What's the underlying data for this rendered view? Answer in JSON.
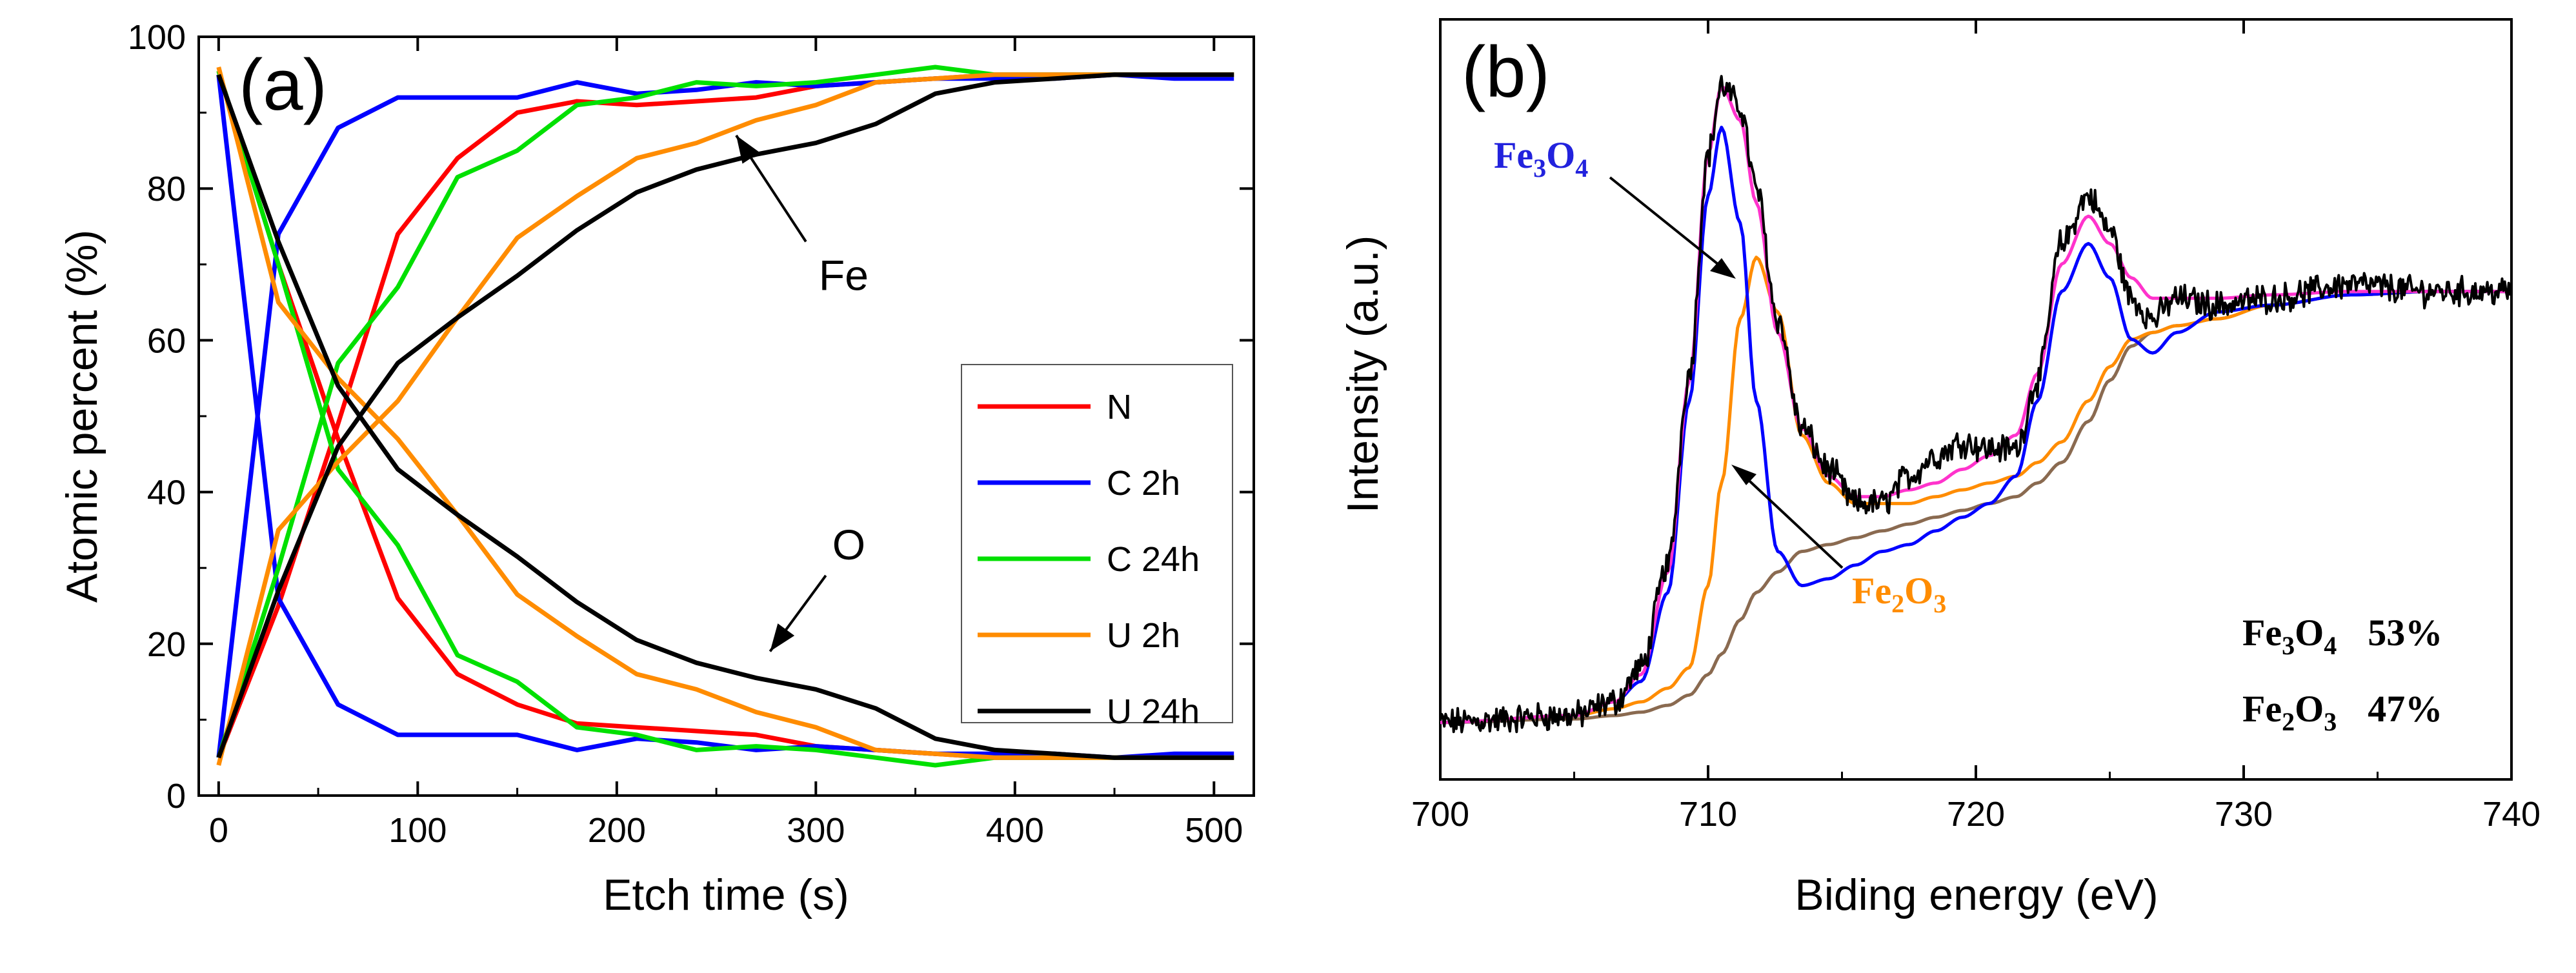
{
  "chart_data": [
    {
      "type": "line",
      "panel_label": "(a)",
      "xlabel": "Etch time (s)",
      "ylabel": "Atomic percent (%)",
      "xlim": [
        -10,
        520
      ],
      "ylim": [
        0,
        100
      ],
      "xticks": [
        0,
        100,
        200,
        300,
        400,
        500
      ],
      "yticks": [
        0,
        20,
        40,
        60,
        80,
        100
      ],
      "legend": {
        "placement": "right",
        "entries": [
          {
            "name": "N",
            "color": "#ff0000"
          },
          {
            "name": "C 2h",
            "color": "#0000ff"
          },
          {
            "name": "C 24h",
            "color": "#00e000"
          },
          {
            "name": "U 2h",
            "color": "#ff8c00"
          },
          {
            "name": "U 24h",
            "color": "#000000"
          }
        ]
      },
      "annotations": [
        {
          "text": "Fe",
          "arrow_from": [
            295,
            73
          ],
          "arrow_to": [
            260,
            87
          ]
        },
        {
          "text": "O",
          "arrow_from": [
            305,
            29
          ],
          "arrow_to": [
            277,
            19
          ]
        }
      ],
      "series": [
        {
          "group": "Fe",
          "color": "#ff0000",
          "x": [
            0,
            30,
            60,
            90,
            120,
            150,
            180,
            210,
            240,
            270,
            300,
            330,
            360,
            390,
            420,
            450,
            480,
            510
          ],
          "values": [
            5,
            25,
            49,
            74,
            84,
            90,
            91.5,
            91,
            91.5,
            92,
            93.5,
            94,
            94.5,
            95,
            95,
            95,
            95,
            95
          ]
        },
        {
          "group": "O",
          "color": "#ff0000",
          "x": [
            0,
            30,
            60,
            90,
            120,
            150,
            180,
            210,
            240,
            270,
            300,
            330,
            360,
            390,
            420,
            450,
            480,
            510
          ],
          "values": [
            95.5,
            70,
            47,
            26,
            16,
            12,
            9.5,
            9,
            8.5,
            8,
            6.5,
            6,
            5.5,
            5,
            5,
            5,
            5,
            5
          ]
        },
        {
          "group": "Fe",
          "color": "#0000ff",
          "x": [
            0,
            30,
            60,
            90,
            120,
            150,
            180,
            210,
            240,
            270,
            300,
            330,
            360,
            390,
            420,
            450,
            480,
            510
          ],
          "values": [
            5,
            74,
            88,
            92,
            92,
            92,
            94,
            92.5,
            93,
            94,
            93.5,
            94,
            94.5,
            94.5,
            94.5,
            95,
            94.5,
            94.5
          ]
        },
        {
          "group": "O",
          "color": "#0000ff",
          "x": [
            0,
            30,
            60,
            90,
            120,
            150,
            180,
            210,
            240,
            270,
            300,
            330,
            360,
            390,
            420,
            450,
            480,
            510
          ],
          "values": [
            95,
            26,
            12,
            8,
            8,
            8,
            6,
            7.5,
            7,
            6,
            6.5,
            6,
            5.5,
            5.5,
            5.5,
            5,
            5.5,
            5.5
          ]
        },
        {
          "group": "Fe",
          "color": "#00e000",
          "x": [
            0,
            30,
            60,
            90,
            120,
            150,
            180,
            210,
            240,
            270,
            300,
            330,
            360,
            390,
            420,
            450,
            480,
            510
          ],
          "values": [
            5,
            30,
            57,
            67,
            81.5,
            85,
            91,
            92,
            94,
            93.5,
            94,
            95,
            96,
            95,
            95,
            95,
            95,
            95
          ]
        },
        {
          "group": "O",
          "color": "#00e000",
          "x": [
            0,
            30,
            60,
            90,
            120,
            150,
            180,
            210,
            240,
            270,
            300,
            330,
            360,
            390,
            420,
            450,
            480,
            510
          ],
          "values": [
            95.5,
            70,
            43,
            33,
            18.5,
            15,
            9,
            8,
            6,
            6.5,
            6,
            5,
            4,
            5,
            5,
            5,
            5,
            5
          ]
        },
        {
          "group": "Fe",
          "color": "#ff8c00",
          "x": [
            0,
            30,
            60,
            90,
            120,
            150,
            180,
            210,
            240,
            270,
            300,
            330,
            360,
            390,
            420,
            450,
            480,
            510
          ],
          "values": [
            4,
            35,
            44,
            52,
            63,
            73.5,
            79,
            84,
            86,
            89,
            91,
            94,
            94.5,
            95,
            95,
            95,
            95,
            95
          ]
        },
        {
          "group": "O",
          "color": "#ff8c00",
          "x": [
            0,
            30,
            60,
            90,
            120,
            150,
            180,
            210,
            240,
            270,
            300,
            330,
            360,
            390,
            420,
            450,
            480,
            510
          ],
          "values": [
            96,
            65,
            55,
            47,
            37,
            26.5,
            21,
            16,
            14,
            11,
            9,
            6,
            5.5,
            5,
            5,
            5,
            5,
            5
          ]
        },
        {
          "group": "Fe",
          "color": "#000000",
          "x": [
            0,
            30,
            60,
            90,
            120,
            150,
            180,
            210,
            240,
            270,
            300,
            330,
            360,
            390,
            420,
            450,
            480,
            510
          ],
          "values": [
            5,
            27,
            46,
            57,
            63,
            68.5,
            74.5,
            79.5,
            82.5,
            84.5,
            86,
            88.5,
            92.5,
            94,
            94.5,
            95,
            95,
            95
          ]
        },
        {
          "group": "O",
          "color": "#000000",
          "x": [
            0,
            30,
            60,
            90,
            120,
            150,
            180,
            210,
            240,
            270,
            300,
            330,
            360,
            390,
            420,
            450,
            480,
            510
          ],
          "values": [
            95,
            73,
            54,
            43,
            37,
            31.5,
            25.5,
            20.5,
            17.5,
            15.5,
            14,
            11.5,
            7.5,
            6,
            5.5,
            5,
            5,
            5
          ]
        }
      ]
    },
    {
      "type": "line",
      "panel_label": "(b)",
      "xlabel": "Biding energy (eV)",
      "ylabel": "Intensity (a.u.)",
      "xlim": [
        700,
        740
      ],
      "ylim": [
        0,
        1
      ],
      "xticks": [
        700,
        710,
        720,
        730,
        740
      ],
      "yticks": [],
      "labels": {
        "fe3o4": {
          "base": "Fe",
          "s1": "3",
          "mid": "O",
          "s2": "4",
          "color": "#2222dd"
        },
        "fe2o3": {
          "base": "Fe",
          "s1": "2",
          "mid": "O",
          "s2": "3",
          "color": "#ff8c00"
        }
      },
      "composition": [
        {
          "base": "Fe",
          "s1": "3",
          "mid": "O",
          "s2": "4",
          "percent": "53%"
        },
        {
          "base": "Fe",
          "s1": "2",
          "mid": "O",
          "s2": "3",
          "percent": "47%"
        }
      ],
      "series": [
        {
          "name": "raw",
          "color": "#000000",
          "noise": true,
          "x": [
            700,
            705,
            706.5,
            707.5,
            708.5,
            709.3,
            710,
            710.5,
            711.2,
            711.8,
            712.6,
            713.5,
            714.5,
            715.5,
            716.5,
            717.5,
            718.5,
            719.5,
            720.5,
            721.5,
            722.3,
            723.2,
            724.2,
            725,
            725.8,
            726.6,
            727.5,
            729,
            731,
            734,
            737,
            740
          ],
          "values": [
            0.05,
            0.06,
            0.08,
            0.13,
            0.28,
            0.56,
            0.88,
            0.98,
            0.95,
            0.83,
            0.64,
            0.48,
            0.42,
            0.37,
            0.37,
            0.41,
            0.44,
            0.46,
            0.45,
            0.45,
            0.55,
            0.75,
            0.82,
            0.77,
            0.67,
            0.64,
            0.67,
            0.66,
            0.67,
            0.69,
            0.68,
            0.68
          ]
        },
        {
          "name": "fit-envelope",
          "color": "#ff33cc",
          "x": [
            700,
            705,
            706.5,
            707.5,
            708.5,
            709.3,
            710,
            710.5,
            711.2,
            711.8,
            712.6,
            713.5,
            714.5,
            715.5,
            716.5,
            717.5,
            718.5,
            719.5,
            720.5,
            721.5,
            722.3,
            723.2,
            724.2,
            725,
            725.8,
            726.6,
            727.5,
            729,
            731,
            734,
            737,
            740
          ],
          "values": [
            0.05,
            0.06,
            0.08,
            0.12,
            0.27,
            0.55,
            0.88,
            0.98,
            0.93,
            0.81,
            0.62,
            0.48,
            0.41,
            0.38,
            0.38,
            0.39,
            0.4,
            0.42,
            0.44,
            0.47,
            0.56,
            0.72,
            0.79,
            0.75,
            0.7,
            0.67,
            0.67,
            0.67,
            0.675,
            0.68,
            0.68,
            0.68
          ]
        },
        {
          "name": "fe3o4-fit",
          "color": "#0000ff",
          "x": [
            700,
            705,
            706.5,
            707.5,
            708.5,
            709.3,
            710,
            710.5,
            711.2,
            711.8,
            712.6,
            713.5,
            714.5,
            715.5,
            716.5,
            717.5,
            718.5,
            719.5,
            720.5,
            721.5,
            722.3,
            723.2,
            724.2,
            725,
            725.8,
            726.6,
            727.5,
            729,
            731,
            734,
            737,
            740
          ],
          "values": [
            0.05,
            0.06,
            0.08,
            0.11,
            0.24,
            0.52,
            0.82,
            0.92,
            0.78,
            0.52,
            0.3,
            0.25,
            0.26,
            0.28,
            0.3,
            0.31,
            0.33,
            0.35,
            0.37,
            0.41,
            0.52,
            0.68,
            0.75,
            0.7,
            0.61,
            0.59,
            0.62,
            0.65,
            0.66,
            0.675,
            0.68,
            0.68
          ]
        },
        {
          "name": "fe2o3-fit",
          "color": "#ff8c00",
          "x": [
            700,
            705,
            706.5,
            707.5,
            708.5,
            709.3,
            710,
            710.5,
            711.2,
            711.8,
            712.6,
            713.5,
            714.5,
            715.5,
            716.5,
            717.5,
            718.5,
            719.5,
            720.5,
            721.5,
            722.3,
            723.2,
            724.2,
            725,
            725.8,
            726.6,
            727.5,
            729,
            731,
            734,
            737,
            740
          ],
          "values": [
            0.05,
            0.06,
            0.07,
            0.08,
            0.1,
            0.13,
            0.25,
            0.4,
            0.64,
            0.73,
            0.65,
            0.47,
            0.4,
            0.37,
            0.37,
            0.37,
            0.38,
            0.39,
            0.4,
            0.41,
            0.43,
            0.46,
            0.52,
            0.57,
            0.61,
            0.62,
            0.63,
            0.64,
            0.66,
            0.675,
            0.68,
            0.68
          ]
        },
        {
          "name": "background",
          "color": "#8a6a50",
          "x": [
            700,
            705,
            706.5,
            707.5,
            708.5,
            709.3,
            710,
            710.5,
            711.2,
            711.8,
            712.6,
            713.5,
            714.5,
            715.5,
            716.5,
            717.5,
            718.5,
            719.5,
            720.5,
            721.5,
            722.3,
            723.2,
            724.2,
            725,
            725.8,
            726.6,
            727.5,
            729,
            731,
            734,
            737,
            740
          ],
          "values": [
            0.05,
            0.055,
            0.06,
            0.065,
            0.075,
            0.09,
            0.12,
            0.15,
            0.2,
            0.24,
            0.27,
            0.3,
            0.31,
            0.32,
            0.33,
            0.34,
            0.35,
            0.36,
            0.37,
            0.38,
            0.4,
            0.43,
            0.49,
            0.55,
            0.6,
            0.62,
            0.63,
            0.64,
            0.66,
            0.675,
            0.68,
            0.68
          ]
        }
      ]
    }
  ]
}
